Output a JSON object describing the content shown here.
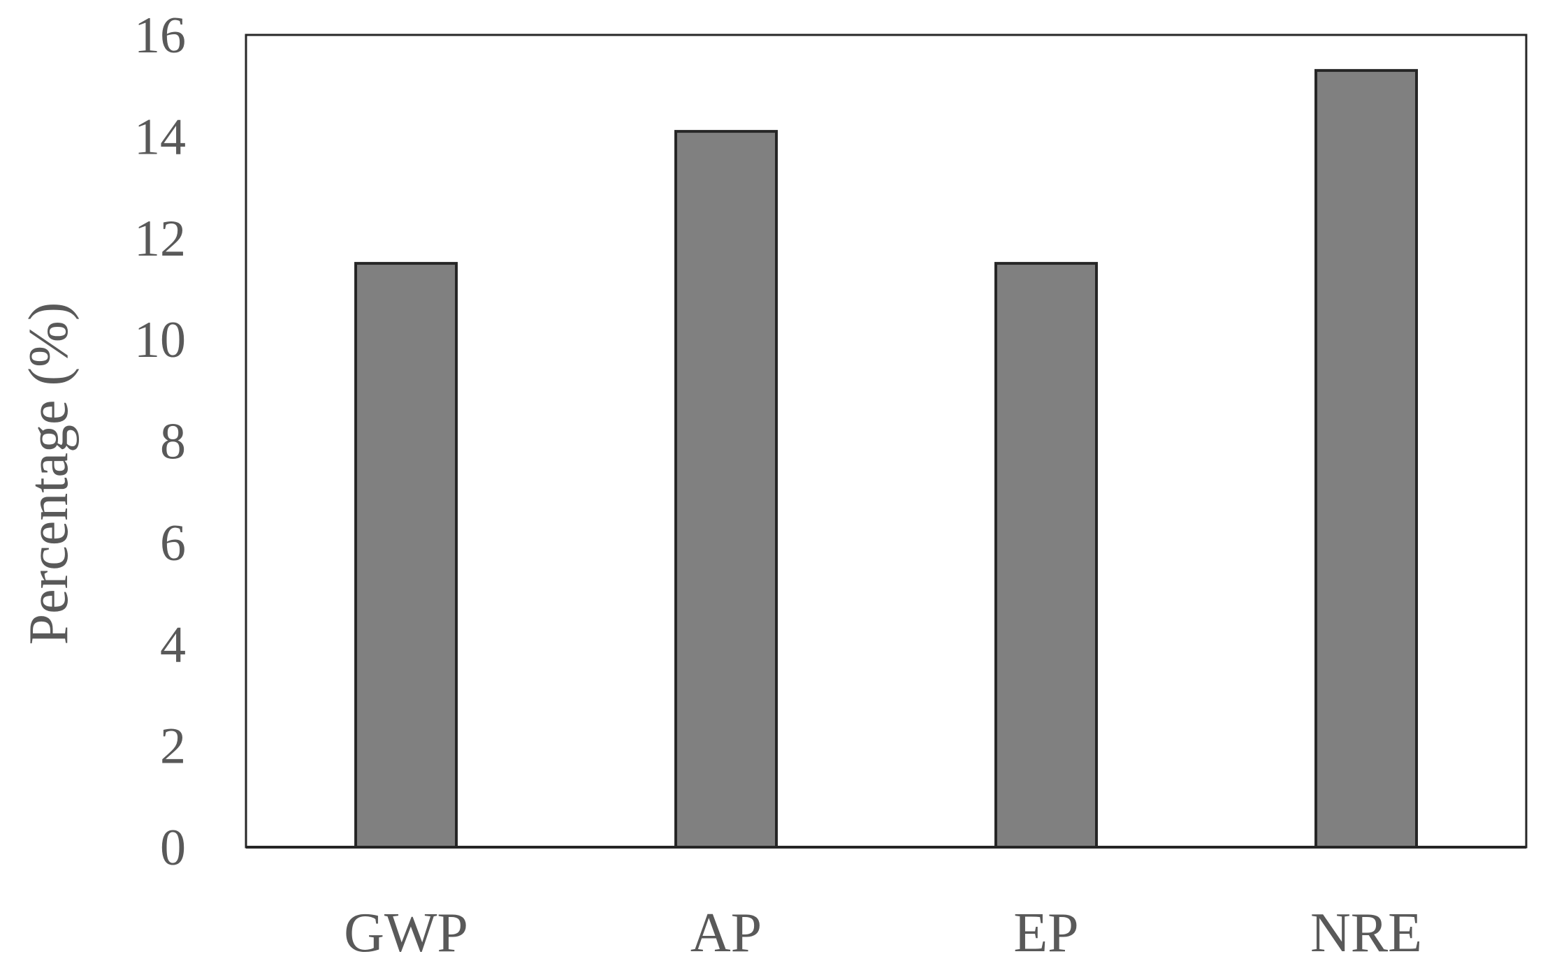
{
  "chart_data": {
    "type": "bar",
    "categories": [
      "GWP",
      "AP",
      "EP",
      "NRE"
    ],
    "values": [
      11.5,
      14.1,
      11.5,
      15.3
    ],
    "title": "",
    "xlabel": "",
    "ylabel": "Percentage (%)",
    "ylim": [
      0,
      16
    ],
    "yticks": [
      "0",
      "2",
      "4",
      "6",
      "8",
      "10",
      "12",
      "14",
      "16"
    ],
    "grid": false,
    "legend": "none",
    "colors": {
      "bar_fill": "#808080",
      "bar_stroke": "#262626",
      "axis": "#262626",
      "text": "#595959"
    }
  }
}
